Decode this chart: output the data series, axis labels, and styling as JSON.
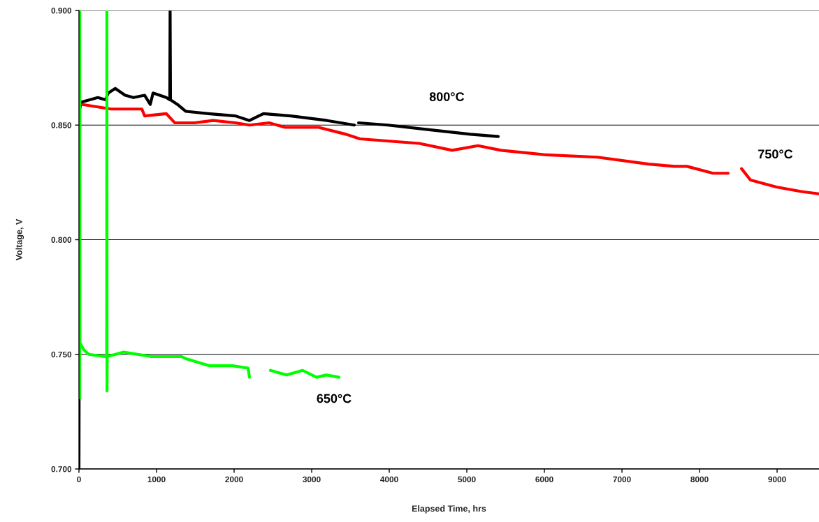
{
  "chart_data": {
    "type": "line",
    "xlabel": "Elapsed Time, hrs",
    "ylabel": "Voltage, V",
    "xlim": [
      0,
      9540
    ],
    "xticks": [
      0,
      1000,
      2000,
      3000,
      4000,
      5000,
      6000,
      7000,
      8000,
      9000
    ],
    "ylim": [
      0.7,
      0.9
    ],
    "yticks": [
      {
        "value": 0.7,
        "label": "0.700"
      },
      {
        "value": 0.75,
        "label": "0.750"
      },
      {
        "value": 0.8,
        "label": "0.800"
      },
      {
        "value": 0.85,
        "label": "0.850"
      },
      {
        "value": 0.9,
        "label": "0.900"
      }
    ],
    "grid": "y",
    "marker": "none",
    "line_style": "solid",
    "series": [
      {
        "name": "800°C",
        "color": "#000000",
        "x": [
          0,
          9,
          27,
          243,
          342,
          378,
          468,
          595,
          703,
          847,
          919,
          955,
          1126,
          1171,
          1175,
          1180,
          1270,
          1378,
          1667,
          2018,
          2198,
          2378,
          2730,
          3198,
          3550,
          3580,
          3604,
          3982,
          4514,
          5045,
          5405
        ],
        "values": [
          0.7,
          0.857,
          0.86,
          0.862,
          0.861,
          0.864,
          0.866,
          0.863,
          0.862,
          0.863,
          0.859,
          0.864,
          0.862,
          0.861,
          0.9,
          0.861,
          0.859,
          0.856,
          0.855,
          0.854,
          0.852,
          0.855,
          0.854,
          0.852,
          0.85,
          null,
          0.851,
          0.85,
          0.848,
          0.846,
          0.845
        ]
      },
      {
        "name": "750°C",
        "color": "#ff0000",
        "x": [
          45,
          414,
          811,
          847,
          1126,
          1234,
          1486,
          1730,
          2018,
          2198,
          2450,
          2658,
          3090,
          3441,
          3622,
          4387,
          4811,
          5144,
          5441,
          6027,
          6685,
          7342,
          7676,
          7838,
          8171,
          8369,
          8450,
          8541,
          8658,
          8991,
          9315,
          9540
        ],
        "values": [
          0.859,
          0.857,
          0.857,
          0.854,
          0.855,
          0.851,
          0.851,
          0.852,
          0.851,
          0.85,
          0.851,
          0.849,
          0.849,
          0.846,
          0.844,
          0.842,
          0.839,
          0.841,
          0.839,
          0.837,
          0.836,
          0.833,
          0.832,
          0.832,
          0.829,
          0.829,
          null,
          0.831,
          0.826,
          0.823,
          0.821,
          0.82
        ]
      },
      {
        "name": "650°C",
        "color": "#00ff00",
        "x": [
          9,
          9,
          12,
          63,
          126,
          333,
          358,
          360,
          362,
          364,
          577,
          937,
          1324,
          1387,
          1685,
          1982,
          2180,
          2198,
          2350,
          2468,
          2676,
          2883,
          3063,
          3189,
          3351
        ],
        "values": [
          0.731,
          0.9,
          0.755,
          0.752,
          0.75,
          0.749,
          0.749,
          0.9,
          0.734,
          0.749,
          0.751,
          0.749,
          0.749,
          0.748,
          0.745,
          0.745,
          0.744,
          0.74,
          null,
          0.743,
          0.741,
          0.743,
          0.74,
          0.741,
          0.74
        ]
      }
    ]
  }
}
